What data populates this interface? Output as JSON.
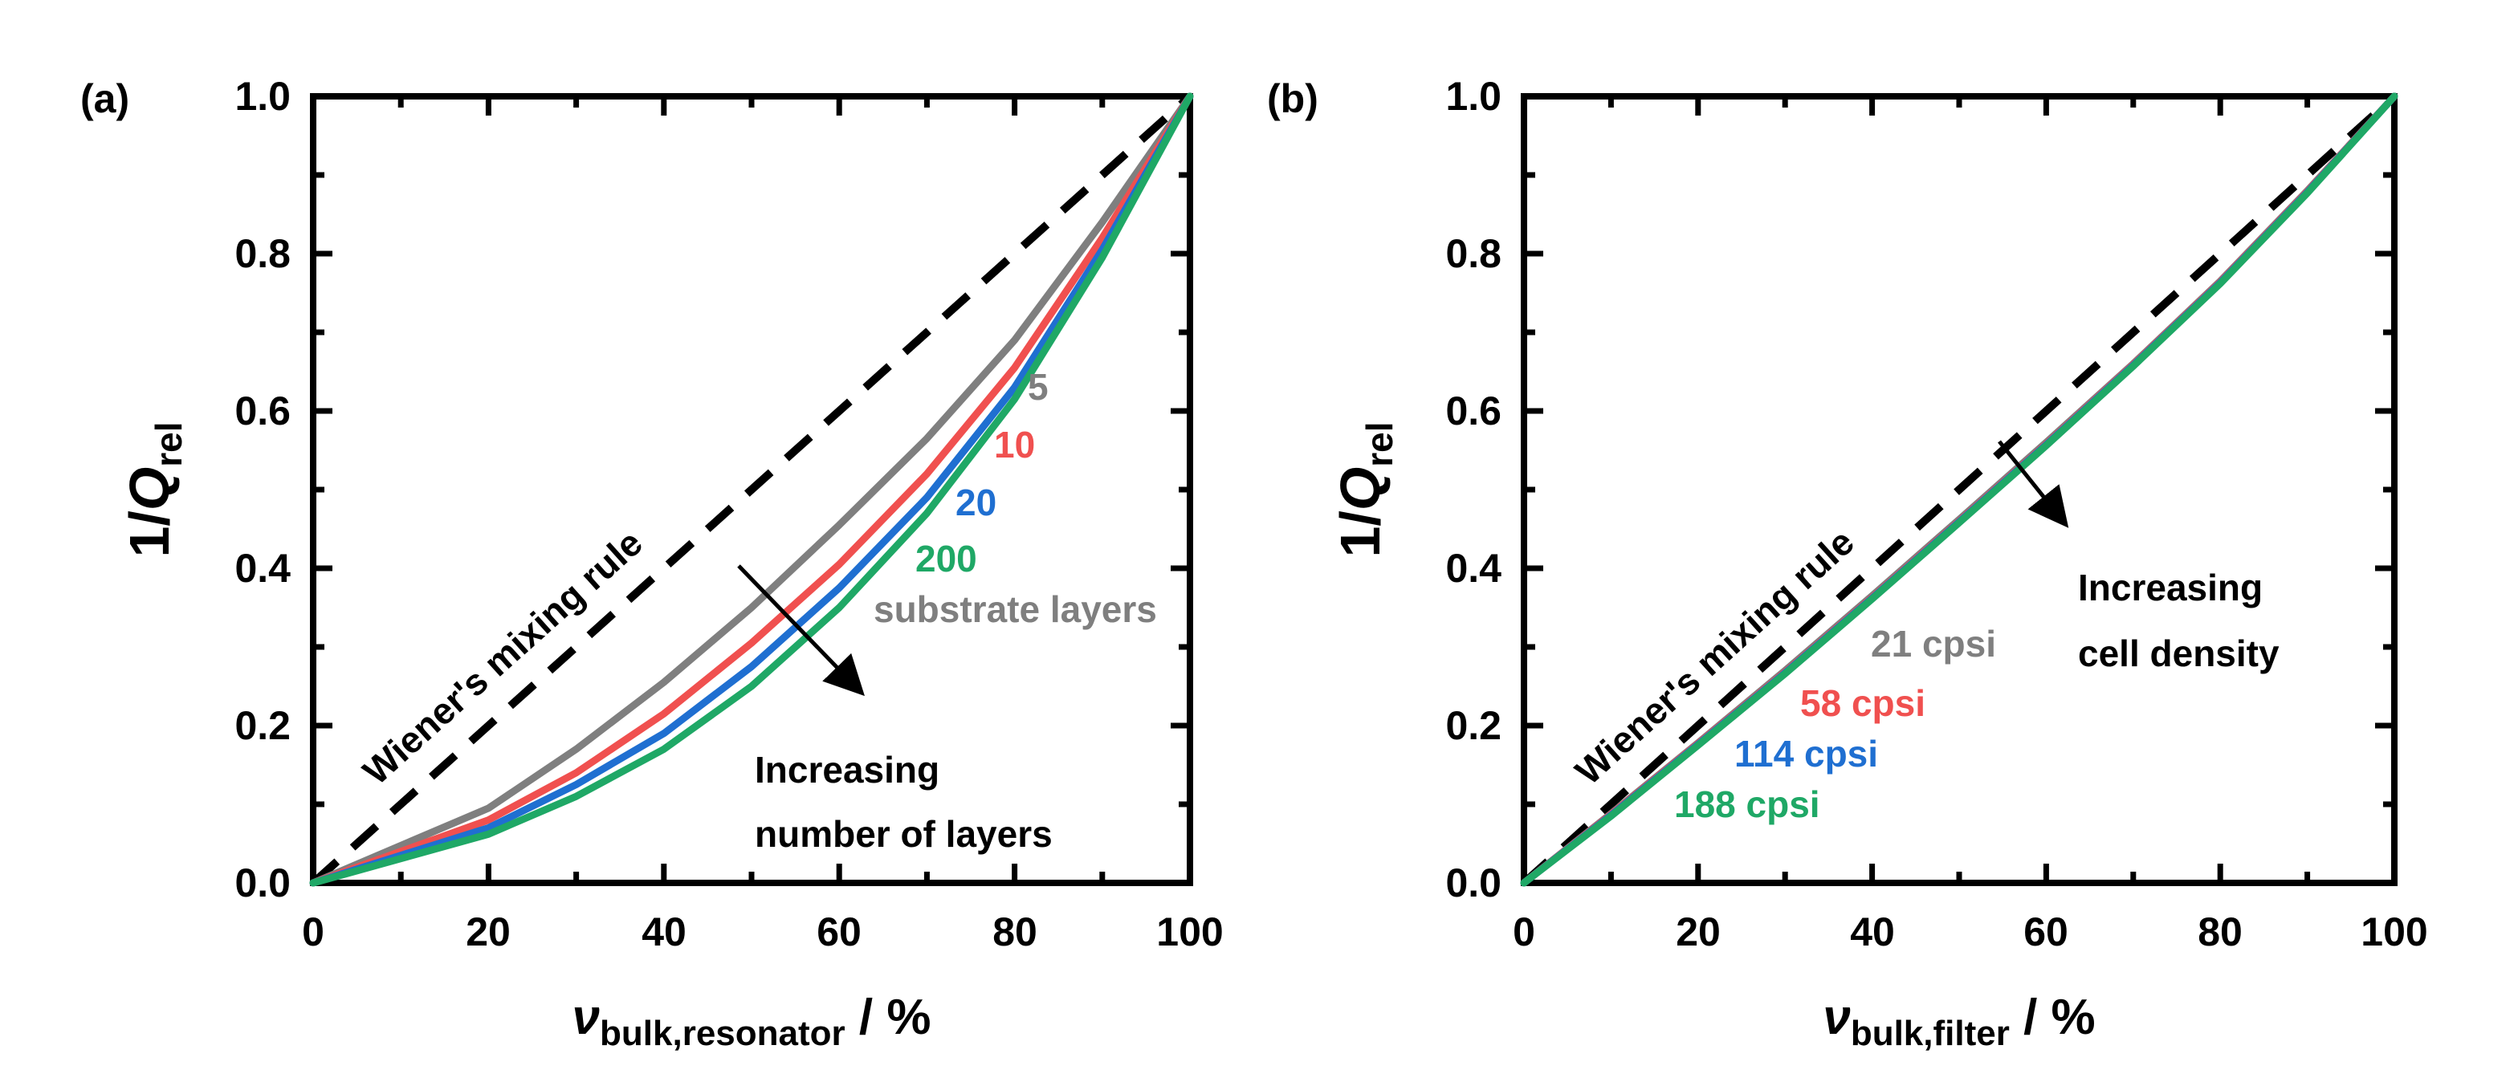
{
  "chart_data": [
    {
      "type": "line",
      "panel_label": "(a)",
      "xlabel": {
        "main": "ν",
        "sub": "bulk,resonator",
        "suffix": " / %"
      },
      "ylabel": {
        "prefix": "1/",
        "main": "Q",
        "sub": "rel"
      },
      "xlim": [
        0,
        100
      ],
      "ylim": [
        0,
        1.0
      ],
      "x_ticks": [
        "0",
        "20",
        "40",
        "60",
        "80",
        "100"
      ],
      "y_ticks": [
        "0.0",
        "0.2",
        "0.4",
        "0.6",
        "0.8",
        "1.0"
      ],
      "reference_line": {
        "name": "Wiener's mixing rule",
        "x": [
          0,
          100
        ],
        "y": [
          0,
          1.0
        ],
        "style": "dashed",
        "color": "#000000"
      },
      "series": [
        {
          "name": "5",
          "color": "#7f7f7f",
          "x": [
            0,
            20,
            30,
            40,
            50,
            60,
            70,
            80,
            90,
            100
          ],
          "y": [
            0,
            0.095,
            0.17,
            0.255,
            0.35,
            0.455,
            0.565,
            0.69,
            0.84,
            1.0
          ]
        },
        {
          "name": "10",
          "color": "#f0504f",
          "x": [
            0,
            20,
            30,
            40,
            50,
            60,
            70,
            80,
            90,
            100
          ],
          "y": [
            0,
            0.08,
            0.14,
            0.215,
            0.305,
            0.405,
            0.52,
            0.655,
            0.82,
            1.0
          ]
        },
        {
          "name": "20",
          "color": "#1f6fd1",
          "x": [
            0,
            20,
            30,
            40,
            50,
            60,
            70,
            80,
            90,
            100
          ],
          "y": [
            0,
            0.07,
            0.125,
            0.19,
            0.275,
            0.375,
            0.49,
            0.63,
            0.805,
            1.0
          ]
        },
        {
          "name": "200",
          "color": "#1fa866",
          "x": [
            0,
            20,
            30,
            40,
            50,
            60,
            70,
            80,
            90,
            100
          ],
          "y": [
            0,
            0.062,
            0.11,
            0.17,
            0.25,
            0.35,
            0.47,
            0.615,
            0.795,
            1.0
          ]
        }
      ],
      "annotations": {
        "wiener": "Wiener's mixing rule",
        "trend_line1": "Increasing",
        "trend_line2": "number of layers",
        "label_5": "5",
        "label_10": "10",
        "label_20": "20",
        "label_200": "200",
        "label_substrate": "substrate layers"
      }
    },
    {
      "type": "line",
      "panel_label": "(b)",
      "xlabel": {
        "main": "ν",
        "sub": "bulk,filter",
        "suffix": " / %"
      },
      "ylabel": {
        "prefix": "1/",
        "main": "Q",
        "sub": "rel"
      },
      "xlim": [
        0,
        100
      ],
      "ylim": [
        0,
        1.0
      ],
      "x_ticks": [
        "0",
        "20",
        "40",
        "60",
        "80",
        "100"
      ],
      "y_ticks": [
        "0.0",
        "0.2",
        "0.4",
        "0.6",
        "0.8",
        "1.0"
      ],
      "reference_line": {
        "name": "Wiener's mixing rule",
        "x": [
          0,
          100
        ],
        "y": [
          0,
          1.0
        ],
        "style": "dashed",
        "color": "#000000"
      },
      "series": [
        {
          "name": "21 cpsi",
          "color": "#7f7f7f",
          "x": [
            0,
            10,
            20,
            30,
            40,
            50,
            60,
            70,
            80,
            90,
            100
          ],
          "y": [
            0,
            0.088,
            0.178,
            0.27,
            0.365,
            0.462,
            0.56,
            0.66,
            0.765,
            0.88,
            1.0
          ]
        },
        {
          "name": "58 cpsi",
          "color": "#f0504f",
          "x": [
            0,
            10,
            20,
            30,
            40,
            50,
            60,
            70,
            80,
            90,
            100
          ],
          "y": [
            0,
            0.087,
            0.177,
            0.268,
            0.363,
            0.46,
            0.558,
            0.659,
            0.764,
            0.879,
            1.0
          ]
        },
        {
          "name": "114 cpsi",
          "color": "#1f6fd1",
          "x": [
            0,
            10,
            20,
            30,
            40,
            50,
            60,
            70,
            80,
            90,
            100
          ],
          "y": [
            0,
            0.086,
            0.176,
            0.267,
            0.362,
            0.459,
            0.557,
            0.658,
            0.763,
            0.878,
            1.0
          ]
        },
        {
          "name": "188 cpsi",
          "color": "#1fa866",
          "x": [
            0,
            10,
            20,
            30,
            40,
            50,
            60,
            70,
            80,
            90,
            100
          ],
          "y": [
            0,
            0.085,
            0.175,
            0.266,
            0.361,
            0.458,
            0.556,
            0.657,
            0.762,
            0.877,
            1.0
          ]
        }
      ],
      "annotations": {
        "wiener": "Wiener's mixing rule",
        "trend_line1": "Increasing",
        "trend_line2": "cell density",
        "label_21": "21 cpsi",
        "label_58": "58 cpsi",
        "label_114": "114 cpsi",
        "label_188": "188 cpsi"
      }
    }
  ]
}
